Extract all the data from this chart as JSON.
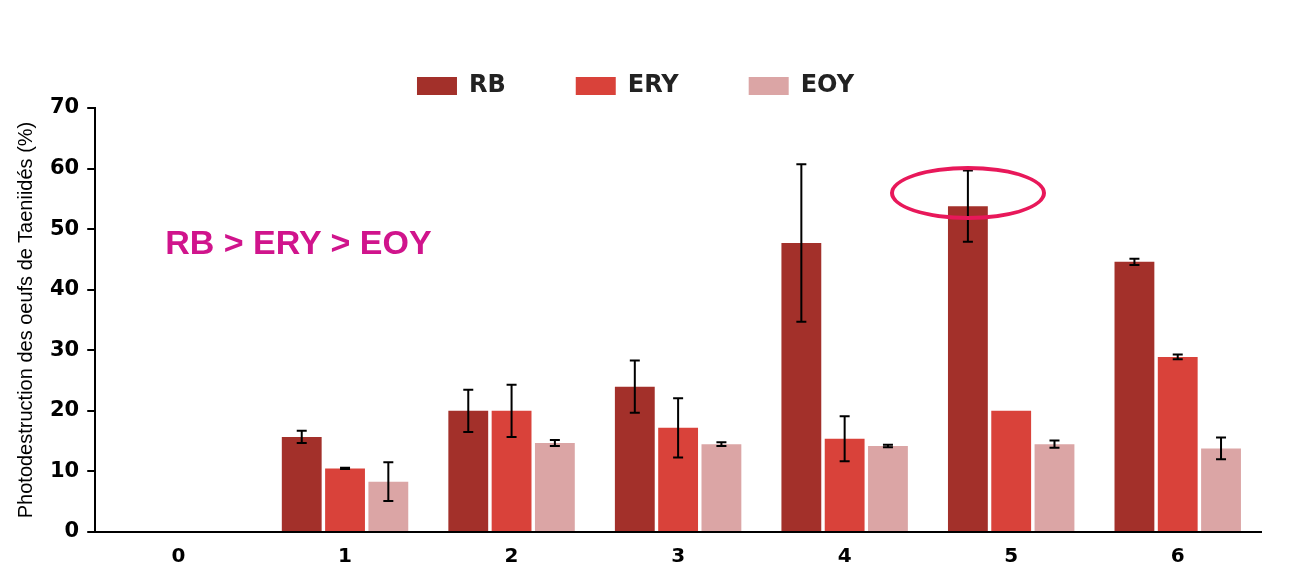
{
  "chart_data": {
    "type": "bar",
    "ylabel": "Photodestruction des oeufs de Taeniidés (%)",
    "categories": [
      "0",
      "1",
      "2",
      "3",
      "4",
      "5",
      "6"
    ],
    "series": [
      {
        "name": "RB",
        "color": "#a3302a",
        "values": [
          null,
          15.7,
          20,
          24,
          47.7,
          53.8,
          44.6
        ],
        "errors": [
          null,
          1,
          3.5,
          4.3,
          13,
          5.9,
          0.5
        ]
      },
      {
        "name": "ERY",
        "color": "#d9423a",
        "values": [
          null,
          10.5,
          20,
          17.2,
          15.4,
          20,
          28.9
        ],
        "errors": [
          null,
          0.1,
          4.3,
          4.9,
          3.7,
          null,
          0.4
        ]
      },
      {
        "name": "EOY",
        "color": "#dba5a5",
        "values": [
          null,
          8.3,
          14.7,
          14.5,
          14.2,
          14.5,
          13.8
        ],
        "errors": [
          null,
          3.2,
          0.5,
          0.3,
          0.2,
          0.6,
          1.8
        ]
      }
    ],
    "ylim": [
      0,
      70
    ],
    "yticks": [
      0,
      10,
      20,
      30,
      40,
      50,
      60,
      70
    ],
    "grid": false,
    "legend": "top",
    "annotations": [
      "RB > ERY > EOY"
    ]
  }
}
